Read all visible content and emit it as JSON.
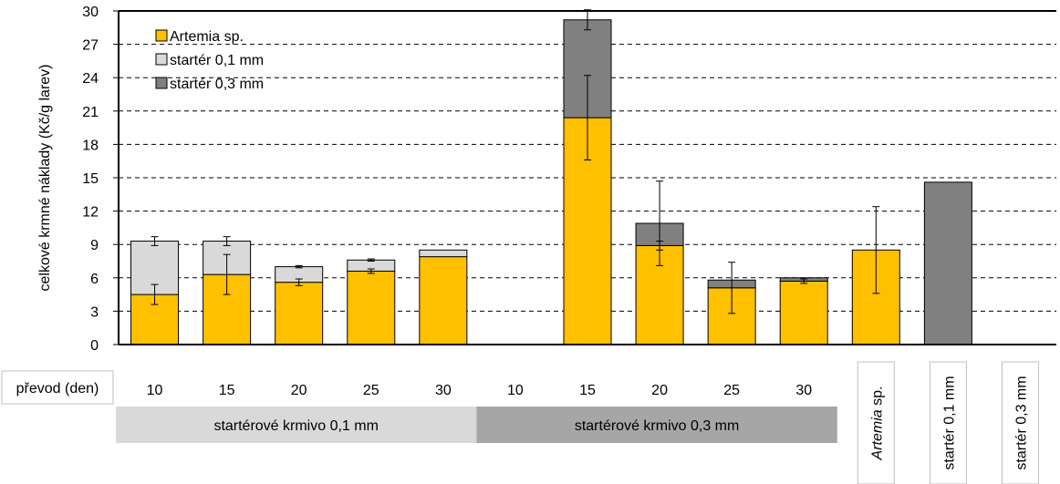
{
  "chart_data": {
    "type": "bar",
    "stacked": true,
    "ylabel": "celkové krmné náklady (Kč/g larev)",
    "ylim": [
      0,
      30
    ],
    "yticks": [
      0,
      3,
      6,
      9,
      12,
      15,
      18,
      21,
      24,
      27,
      30
    ],
    "grid": "horizontal dashed",
    "legend_position": "top-left",
    "x_row_title": "převod (den)",
    "categories": [
      "10",
      "15",
      "20",
      "25",
      "30",
      "10",
      "15",
      "20",
      "25",
      "30",
      "Artemia sp.",
      "startér 0,1 mm",
      "startér 0,3 mm"
    ],
    "series": [
      {
        "name": "Artemia sp.",
        "color": "#FFC000",
        "values": [
          4.5,
          6.3,
          5.6,
          6.6,
          7.9,
          0,
          20.4,
          8.9,
          5.1,
          5.7,
          8.5,
          0,
          0
        ],
        "error": [
          0.9,
          1.8,
          0.3,
          0.2,
          null,
          null,
          3.8,
          0.4,
          2.3,
          0.2,
          3.9,
          null,
          null
        ]
      },
      {
        "name": "startér 0,1 mm",
        "color": "#D9D9D9",
        "values": [
          4.8,
          3.0,
          1.4,
          1.0,
          0.6,
          0,
          0,
          0,
          0,
          0,
          0,
          0,
          0
        ],
        "error": [
          0.4,
          0.4,
          0.1,
          0.1,
          null,
          null,
          null,
          null,
          null,
          null,
          null,
          null,
          null
        ]
      },
      {
        "name": "startér 0,3 mm",
        "color": "#808080",
        "values": [
          0,
          0,
          0,
          0,
          0,
          0,
          8.8,
          2.0,
          0.7,
          0.3,
          0,
          14.6,
          0
        ],
        "error": [
          null,
          null,
          null,
          null,
          null,
          null,
          0.9,
          3.8,
          null,
          null,
          null,
          null,
          null
        ]
      }
    ],
    "groups": [
      {
        "label": "startérové krmivo 0,1 mm",
        "color": "#D9D9D9",
        "from": 0,
        "to": 4
      },
      {
        "label": "startérové krmivo 0,3 mm",
        "color": "#A6A6A6",
        "from": 5,
        "to": 9
      }
    ],
    "rotated_labels": [
      {
        "index": 10,
        "parts": [
          {
            "text": "Artemia",
            "italic": true
          },
          {
            "text": " sp.",
            "italic": false
          }
        ]
      },
      {
        "index": 11,
        "parts": [
          {
            "text": "startér 0,1 mm",
            "italic": false
          }
        ]
      },
      {
        "index": 12,
        "parts": [
          {
            "text": "startér 0,3 mm",
            "italic": false
          }
        ]
      }
    ]
  }
}
